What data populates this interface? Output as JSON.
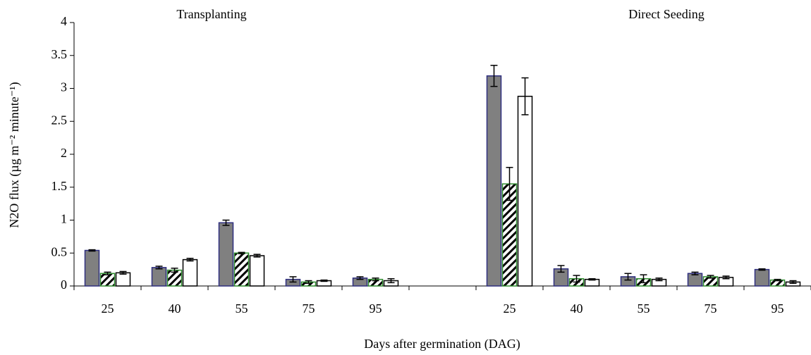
{
  "chart_data": {
    "type": "bar",
    "y_label": "N2O flux (µg m⁻² minute⁻¹)",
    "x_label": "Days after germination (DAG)",
    "annotations": [
      "Transplanting",
      "Direct Seeding"
    ],
    "categories": [
      "25",
      "40",
      "55",
      "75",
      "95",
      null,
      "25",
      "40",
      "55",
      "75",
      "95"
    ],
    "series": [
      {
        "color": "#808080",
        "edgecolor": "#2f2f7f",
        "pattern": "solid",
        "values": [
          0.54,
          0.28,
          0.96,
          0.1,
          0.12,
          null,
          3.19,
          0.26,
          0.14,
          0.19,
          0.25
        ],
        "errors": [
          0.01,
          0.02,
          0.04,
          0.04,
          0.02,
          null,
          0.16,
          0.05,
          0.05,
          0.02,
          0.01
        ]
      },
      {
        "color": "#000000",
        "edgecolor": "#2e8b2e",
        "pattern": "hatch",
        "values": [
          0.19,
          0.24,
          0.5,
          0.06,
          0.1,
          null,
          1.55,
          0.11,
          0.11,
          0.14,
          0.09
        ],
        "errors": [
          0.02,
          0.03,
          0.01,
          0.02,
          0.02,
          null,
          0.25,
          0.05,
          0.06,
          0.02,
          0.01
        ]
      },
      {
        "color": "#ffffff",
        "edgecolor": "#000000",
        "pattern": "solid",
        "values": [
          0.2,
          0.4,
          0.46,
          0.08,
          0.08,
          null,
          2.88,
          0.1,
          0.1,
          0.13,
          0.06
        ],
        "errors": [
          0.02,
          0.02,
          0.02,
          0.01,
          0.03,
          null,
          0.28,
          0.01,
          0.02,
          0.02,
          0.02
        ]
      }
    ],
    "ylim": [
      0,
      4
    ],
    "yticks": [
      0,
      0.5,
      1,
      1.5,
      2,
      2.5,
      3,
      3.5,
      4
    ],
    "grid": false
  }
}
